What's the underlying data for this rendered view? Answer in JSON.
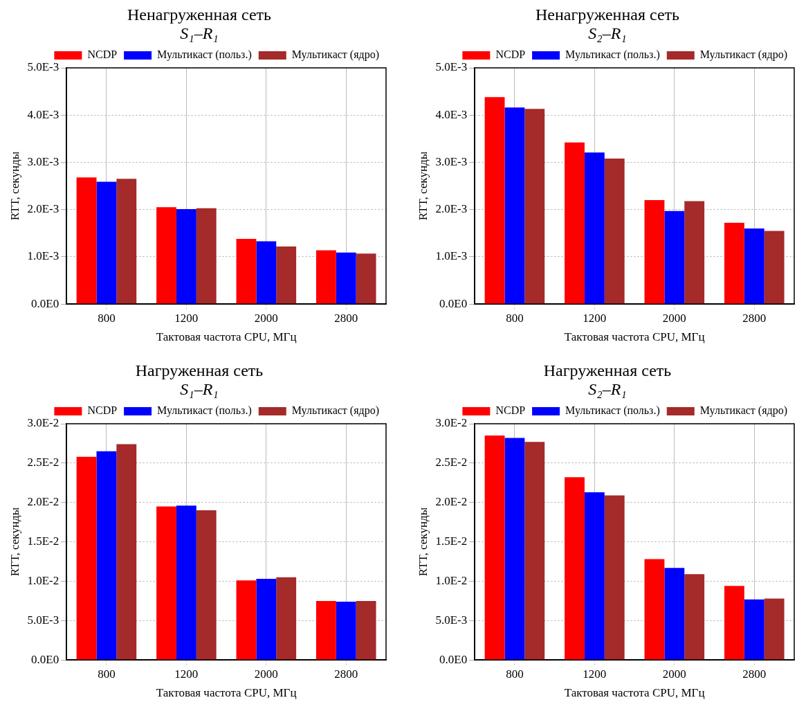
{
  "chart_data": [
    {
      "type": "bar",
      "title": "Ненагруженная сеть",
      "subtitle": "S₁–R₁",
      "xlabel": "Тактовая частота CPU, МГц",
      "ylabel": "RTT, секунды",
      "categories": [
        "800",
        "1200",
        "2000",
        "2800"
      ],
      "series": [
        {
          "name": "NCDP",
          "color": "#ff0000",
          "values": [
            0.00268,
            0.00205,
            0.00138,
            0.00114
          ]
        },
        {
          "name": "Мультикаст (польз.)",
          "color": "#0000ff",
          "values": [
            0.00259,
            0.00201,
            0.00133,
            0.00109
          ]
        },
        {
          "name": "Мультикаст (ядро)",
          "color": "#a52a2a",
          "values": [
            0.00265,
            0.00203,
            0.00122,
            0.00107
          ]
        }
      ],
      "ylim": [
        0,
        0.005
      ],
      "yticks": [
        {
          "value": 0,
          "label": "0.0E0"
        },
        {
          "value": 0.001,
          "label": "1.0E-3"
        },
        {
          "value": 0.002,
          "label": "2.0E-3"
        },
        {
          "value": 0.003,
          "label": "3.0E-3"
        },
        {
          "value": 0.004,
          "label": "4.0E-3"
        },
        {
          "value": 0.005,
          "label": "5.0E-3"
        }
      ],
      "grid": true,
      "legend": "top right"
    },
    {
      "type": "bar",
      "title": "Ненагруженная сеть",
      "subtitle": "S₂–R₁",
      "xlabel": "Тактовая частота CPU, МГц",
      "ylabel": "RTT, секунды",
      "categories": [
        "800",
        "1200",
        "2000",
        "2800"
      ],
      "series": [
        {
          "name": "NCDP",
          "color": "#ff0000",
          "values": [
            0.00438,
            0.00342,
            0.0022,
            0.00172
          ]
        },
        {
          "name": "Мультикаст (польз.)",
          "color": "#0000ff",
          "values": [
            0.00416,
            0.00321,
            0.00197,
            0.0016
          ]
        },
        {
          "name": "Мультикаст (ядро)",
          "color": "#a52a2a",
          "values": [
            0.00413,
            0.00308,
            0.00218,
            0.00155
          ]
        }
      ],
      "ylim": [
        0,
        0.005
      ],
      "yticks": [
        {
          "value": 0,
          "label": "0.0E0"
        },
        {
          "value": 0.001,
          "label": "1.0E-3"
        },
        {
          "value": 0.002,
          "label": "2.0E-3"
        },
        {
          "value": 0.003,
          "label": "3.0E-3"
        },
        {
          "value": 0.004,
          "label": "4.0E-3"
        },
        {
          "value": 0.005,
          "label": "5.0E-3"
        }
      ],
      "grid": true,
      "legend": "top right"
    },
    {
      "type": "bar",
      "title": "Нагруженная сеть",
      "subtitle": "S₁–R₁",
      "xlabel": "Тактовая частота CPU, МГц",
      "ylabel": "RTT, секунды",
      "categories": [
        "800",
        "1200",
        "2000",
        "2800"
      ],
      "series": [
        {
          "name": "NCDP",
          "color": "#ff0000",
          "values": [
            0.0258,
            0.0195,
            0.0101,
            0.0075
          ]
        },
        {
          "name": "Мультикаст (польз.)",
          "color": "#0000ff",
          "values": [
            0.0265,
            0.0196,
            0.0103,
            0.0074
          ]
        },
        {
          "name": "Мультикаст (ядро)",
          "color": "#a52a2a",
          "values": [
            0.0274,
            0.019,
            0.0105,
            0.0075
          ]
        }
      ],
      "ylim": [
        0,
        0.03
      ],
      "yticks": [
        {
          "value": 0,
          "label": "0.0E0"
        },
        {
          "value": 0.005,
          "label": "5.0E-3"
        },
        {
          "value": 0.01,
          "label": "1.0E-2"
        },
        {
          "value": 0.015,
          "label": "1.5E-2"
        },
        {
          "value": 0.02,
          "label": "2.0E-2"
        },
        {
          "value": 0.025,
          "label": "2.5E-2"
        },
        {
          "value": 0.03,
          "label": "3.0E-2"
        }
      ],
      "grid": true,
      "legend": "top right"
    },
    {
      "type": "bar",
      "title": "Нагруженная сеть",
      "subtitle": "S₂–R₁",
      "xlabel": "Тактовая частота CPU, МГц",
      "ylabel": "RTT, секунды",
      "categories": [
        "800",
        "1200",
        "2000",
        "2800"
      ],
      "series": [
        {
          "name": "NCDP",
          "color": "#ff0000",
          "values": [
            0.0285,
            0.0232,
            0.0128,
            0.0094
          ]
        },
        {
          "name": "Мультикаст (польз.)",
          "color": "#0000ff",
          "values": [
            0.0282,
            0.0213,
            0.0117,
            0.0077
          ]
        },
        {
          "name": "Мультикаст (ядро)",
          "color": "#a52a2a",
          "values": [
            0.0277,
            0.0209,
            0.0109,
            0.0078
          ]
        }
      ],
      "ylim": [
        0,
        0.03
      ],
      "yticks": [
        {
          "value": 0,
          "label": "0.0E0"
        },
        {
          "value": 0.005,
          "label": "5.0E-3"
        },
        {
          "value": 0.01,
          "label": "1.0E-2"
        },
        {
          "value": 0.015,
          "label": "1.5E-2"
        },
        {
          "value": 0.02,
          "label": "2.0E-2"
        },
        {
          "value": 0.025,
          "label": "2.5E-2"
        },
        {
          "value": 0.03,
          "label": "3.0E-2"
        }
      ],
      "grid": true,
      "legend": "top right"
    }
  ]
}
